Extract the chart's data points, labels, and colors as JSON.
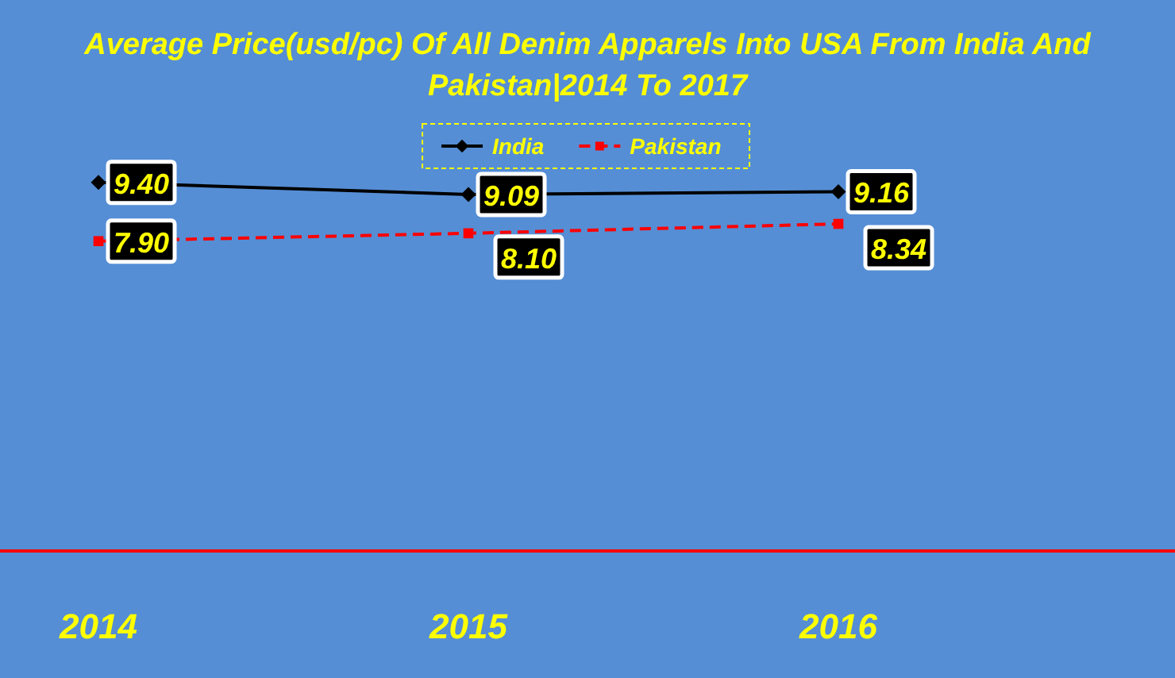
{
  "chart_data": {
    "type": "line",
    "title": "Average Price(usd/pc) Of All Denim Apparels Into USA From India And Pakistan|2014 To 2017",
    "categories": [
      "2014",
      "2015",
      "2016"
    ],
    "series": [
      {
        "name": "India",
        "color": "#000000",
        "values": [
          9.4,
          9.09,
          9.16
        ],
        "value_labels": [
          "9.40",
          "9.09",
          "9.16"
        ],
        "marker": "diamond",
        "line_style": "solid"
      },
      {
        "name": "Pakistan",
        "color": "#ff0000",
        "values": [
          7.9,
          8.1,
          8.34
        ],
        "value_labels": [
          "7.90",
          "8.10",
          "8.34"
        ],
        "marker": "square",
        "line_style": "dashed"
      }
    ],
    "legend": "top",
    "grid": false
  }
}
